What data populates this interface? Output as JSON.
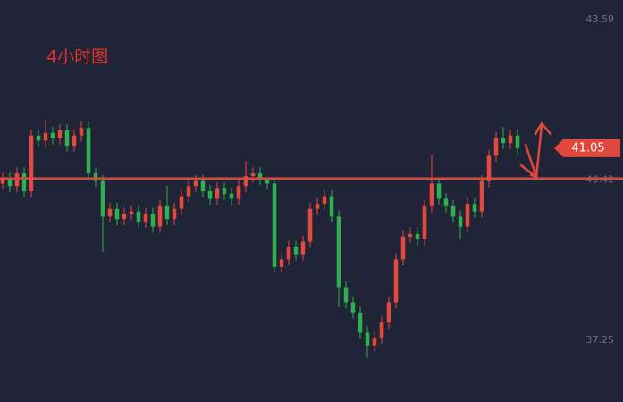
{
  "chart_data": {
    "type": "candlestick",
    "title": "4小时图",
    "ylim": [
      36.03,
      43.98
    ],
    "yticks": [
      37.25,
      40.42,
      43.59
    ],
    "up_color": "#e5483f",
    "down_color": "#2fb04c",
    "level": 40.45,
    "level_color": "#e0483c",
    "last_price": 41.05,
    "open": [
      40.35,
      40.45,
      40.3,
      40.55,
      40.2,
      41.3,
      41.2,
      41.35,
      41.25,
      41.4,
      41.1,
      41.3,
      41.45,
      40.55,
      40.4,
      39.7,
      39.85,
      39.65,
      39.75,
      39.8,
      39.6,
      39.75,
      39.5,
      39.9,
      39.65,
      39.85,
      40.1,
      40.3,
      40.4,
      40.2,
      40.05,
      40.25,
      40.15,
      40.05,
      40.3,
      40.5,
      40.55,
      40.45,
      40.35,
      38.7,
      38.85,
      39.1,
      38.95,
      39.2,
      39.85,
      39.95,
      40.1,
      39.7,
      38.3,
      38.0,
      37.8,
      37.4,
      37.15,
      37.3,
      37.6,
      38.0,
      38.85,
      39.3,
      39.35,
      39.25,
      39.9,
      40.35,
      40.05,
      39.9,
      39.7,
      39.5,
      39.95,
      39.8,
      40.4,
      40.9,
      41.25,
      41.15,
      41.3
    ],
    "high": [
      40.57,
      40.57,
      40.67,
      40.67,
      41.42,
      41.42,
      41.62,
      41.47,
      41.52,
      41.52,
      41.42,
      41.57,
      41.57,
      40.67,
      40.52,
      39.97,
      39.97,
      39.87,
      39.92,
      39.92,
      39.87,
      39.87,
      40.02,
      40.3,
      39.97,
      40.22,
      40.42,
      40.52,
      40.52,
      40.32,
      40.37,
      40.37,
      40.27,
      40.42,
      40.8,
      40.67,
      40.67,
      40.47,
      40.47,
      38.97,
      39.22,
      39.22,
      39.32,
      39.97,
      40.07,
      40.22,
      40.22,
      39.82,
      38.42,
      38.12,
      37.92,
      37.52,
      37.42,
      37.72,
      38.12,
      38.97,
      39.42,
      39.47,
      39.47,
      40.02,
      40.92,
      40.47,
      40.17,
      40.02,
      39.82,
      40.07,
      40.07,
      40.52,
      41.02,
      41.37,
      41.47,
      41.42,
      41.42
    ],
    "low": [
      40.23,
      40.18,
      40.18,
      40.08,
      40.08,
      41.08,
      41.08,
      41.13,
      41.13,
      40.98,
      40.98,
      41.18,
      40.43,
      40.28,
      39.0,
      39.58,
      39.53,
      39.53,
      39.63,
      39.48,
      39.48,
      39.38,
      39.38,
      39.53,
      39.53,
      39.73,
      39.98,
      40.18,
      40.08,
      39.93,
      39.93,
      40.03,
      39.93,
      39.93,
      40.18,
      40.38,
      40.33,
      40.23,
      38.58,
      38.58,
      38.73,
      38.83,
      38.83,
      39.08,
      39.73,
      39.83,
      39.58,
      37.9,
      37.88,
      37.68,
      37.28,
      36.9,
      37.03,
      37.18,
      37.48,
      37.88,
      38.73,
      39.18,
      39.13,
      39.13,
      39.78,
      39.93,
      39.78,
      39.58,
      39.25,
      39.38,
      39.68,
      39.68,
      40.28,
      40.78,
      41.03,
      41.03,
      40.93
    ],
    "close": [
      40.45,
      40.3,
      40.55,
      40.2,
      41.3,
      41.2,
      41.35,
      41.25,
      41.4,
      41.1,
      41.3,
      41.45,
      40.55,
      40.4,
      39.7,
      39.85,
      39.65,
      39.75,
      39.8,
      39.6,
      39.75,
      39.5,
      39.9,
      39.65,
      39.85,
      40.1,
      40.3,
      40.4,
      40.2,
      40.05,
      40.25,
      40.15,
      40.05,
      40.3,
      40.5,
      40.55,
      40.45,
      40.35,
      38.7,
      38.85,
      39.1,
      38.95,
      39.2,
      39.85,
      39.95,
      40.1,
      39.7,
      38.3,
      38.0,
      37.8,
      37.4,
      37.15,
      37.3,
      37.6,
      38.0,
      38.85,
      39.3,
      39.35,
      39.25,
      39.9,
      40.35,
      40.05,
      39.9,
      39.7,
      39.5,
      39.95,
      39.8,
      40.4,
      40.9,
      41.25,
      41.15,
      41.3,
      41.05
    ]
  }
}
